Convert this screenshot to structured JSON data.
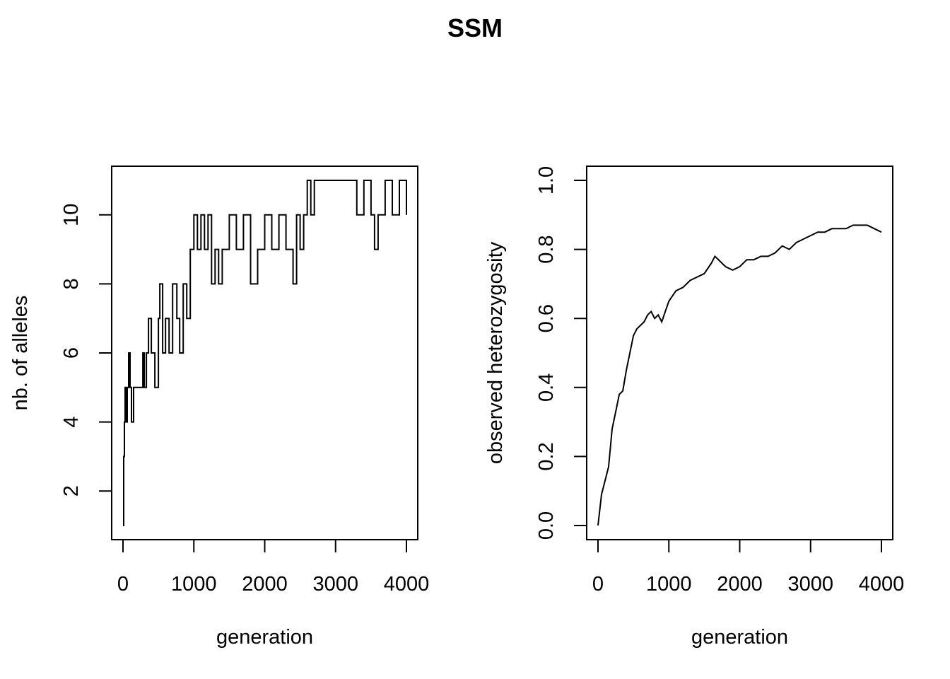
{
  "title": "SSM",
  "chart_data": [
    {
      "type": "line",
      "line_style": "step",
      "xlabel": "generation",
      "ylabel": "nb. of alleles",
      "xlim": [
        0,
        4000
      ],
      "ylim": [
        1,
        11
      ],
      "xticks": [
        0,
        1000,
        2000,
        3000,
        4000
      ],
      "yticks": [
        2,
        4,
        6,
        8,
        10
      ],
      "grid": false,
      "series": [
        {
          "x": [
            0,
            10,
            20,
            30,
            50,
            60,
            80,
            100,
            120,
            150,
            250,
            280,
            300,
            330,
            360,
            400,
            450,
            500,
            520,
            560,
            600,
            650,
            700,
            760,
            800,
            850,
            900,
            950,
            1000,
            1050,
            1100,
            1150,
            1200,
            1250,
            1300,
            1350,
            1400,
            1500,
            1600,
            1700,
            1800,
            1900,
            2000,
            2100,
            2200,
            2300,
            2400,
            2450,
            2500,
            2550,
            2600,
            2650,
            2700,
            2800,
            3000,
            3300,
            3400,
            3500,
            3550,
            3600,
            3700,
            3800,
            3900,
            4000
          ],
          "values": [
            1,
            3,
            4,
            5,
            4,
            5,
            6,
            5,
            4,
            5,
            5,
            6,
            5,
            6,
            7,
            6,
            5,
            7,
            8,
            6,
            7,
            6,
            8,
            7,
            6,
            8,
            7,
            9,
            10,
            9,
            10,
            9,
            10,
            8,
            9,
            8,
            9,
            10,
            9,
            10,
            8,
            9,
            10,
            9,
            10,
            9,
            8,
            10,
            9,
            10,
            11,
            10,
            11,
            11,
            11,
            10,
            11,
            10,
            9,
            10,
            11,
            10,
            11,
            10
          ]
        }
      ]
    },
    {
      "type": "line",
      "xlabel": "generation",
      "ylabel": "observed heterozygosity",
      "xlim": [
        0,
        4000
      ],
      "ylim": [
        0,
        1
      ],
      "xticks": [
        0,
        1000,
        2000,
        3000,
        4000
      ],
      "yticks": [
        "0.0",
        "0.2",
        "0.4",
        "0.6",
        "0.8",
        "1.0"
      ],
      "grid": false,
      "series": [
        {
          "x": [
            0,
            50,
            100,
            150,
            200,
            250,
            300,
            350,
            400,
            450,
            500,
            550,
            600,
            650,
            700,
            750,
            800,
            850,
            900,
            950,
            1000,
            1100,
            1200,
            1300,
            1400,
            1500,
            1600,
            1650,
            1700,
            1800,
            1900,
            2000,
            2100,
            2200,
            2300,
            2400,
            2500,
            2600,
            2700,
            2800,
            2900,
            3000,
            3100,
            3200,
            3300,
            3400,
            3500,
            3600,
            3700,
            3800,
            3900,
            4000
          ],
          "values": [
            0.0,
            0.09,
            0.13,
            0.17,
            0.28,
            0.33,
            0.38,
            0.39,
            0.45,
            0.5,
            0.55,
            0.57,
            0.58,
            0.59,
            0.61,
            0.62,
            0.6,
            0.61,
            0.59,
            0.62,
            0.65,
            0.68,
            0.69,
            0.71,
            0.72,
            0.73,
            0.76,
            0.78,
            0.77,
            0.75,
            0.74,
            0.75,
            0.77,
            0.77,
            0.78,
            0.78,
            0.79,
            0.81,
            0.8,
            0.82,
            0.83,
            0.84,
            0.85,
            0.85,
            0.86,
            0.86,
            0.86,
            0.87,
            0.87,
            0.87,
            0.86,
            0.85
          ]
        }
      ]
    }
  ]
}
